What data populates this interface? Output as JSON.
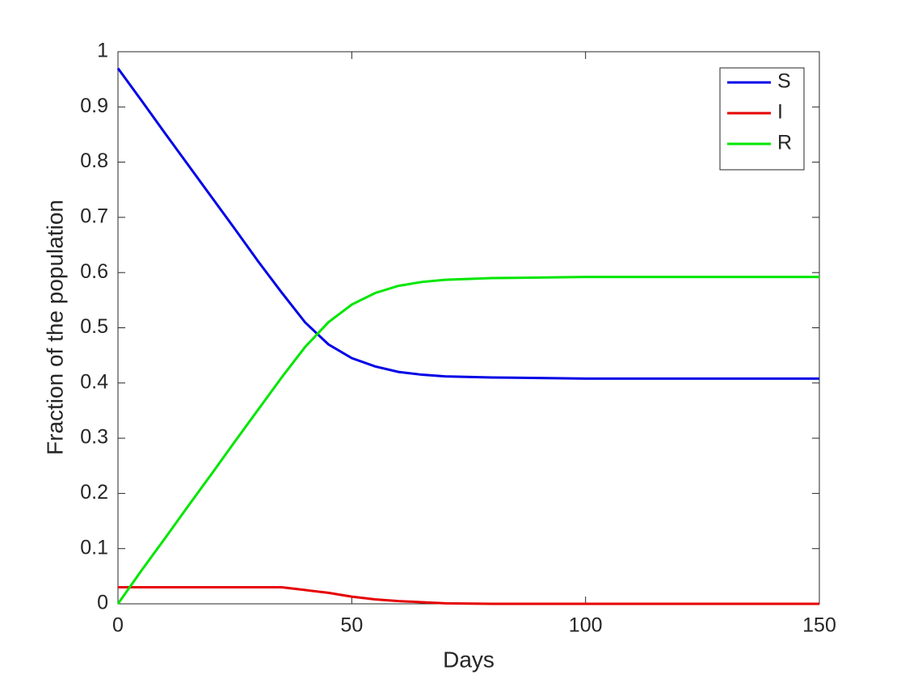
{
  "chart_data": {
    "type": "line",
    "xlabel": "Days",
    "ylabel": "Fraction of the population",
    "x": [
      0,
      5,
      10,
      15,
      20,
      25,
      30,
      35,
      40,
      45,
      50,
      55,
      60,
      65,
      70,
      80,
      90,
      100,
      150
    ],
    "series": [
      {
        "name": "S",
        "color": "#0000e6",
        "values": [
          0.97,
          0.912,
          0.853,
          0.795,
          0.737,
          0.679,
          0.62,
          0.564,
          0.51,
          0.47,
          0.445,
          0.43,
          0.42,
          0.415,
          0.412,
          0.41,
          0.409,
          0.408,
          0.408
        ]
      },
      {
        "name": "I",
        "color": "#e60000",
        "values": [
          0.03,
          0.03,
          0.03,
          0.03,
          0.03,
          0.03,
          0.03,
          0.03,
          0.025,
          0.02,
          0.013,
          0.008,
          0.005,
          0.003,
          0.001,
          0,
          0,
          0,
          0
        ]
      },
      {
        "name": "R",
        "color": "#00e600",
        "values": [
          0,
          0.06,
          0.118,
          0.177,
          0.235,
          0.294,
          0.352,
          0.41,
          0.465,
          0.51,
          0.542,
          0.563,
          0.576,
          0.583,
          0.587,
          0.59,
          0.591,
          0.592,
          0.592
        ]
      }
    ],
    "xlim": [
      0,
      150
    ],
    "xticks": [
      0,
      50,
      100,
      150
    ],
    "ylim": [
      0,
      1
    ],
    "yticks": [
      0,
      0.1,
      0.2,
      0.3,
      0.4,
      0.5,
      0.6,
      0.7,
      0.8,
      0.9,
      1
    ],
    "legend": "top-right"
  }
}
